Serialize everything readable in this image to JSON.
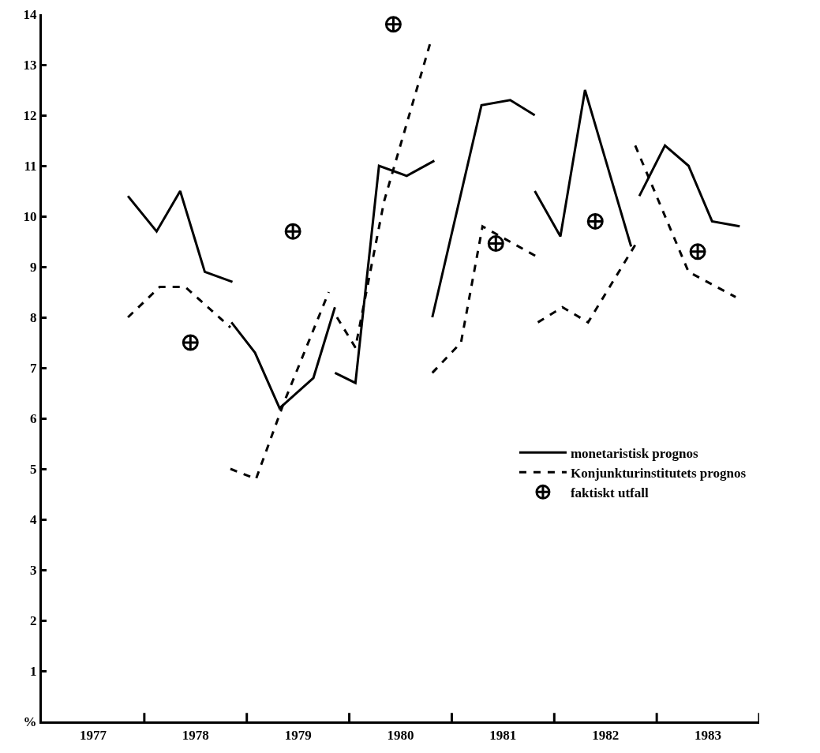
{
  "chart_data": {
    "type": "line",
    "xlim": [
      1977,
      1984
    ],
    "ylim": [
      0,
      14
    ],
    "xticks": [
      {
        "value": 1977.5,
        "label": "1977"
      },
      {
        "value": 1978.5,
        "label": "1978"
      },
      {
        "value": 1979.5,
        "label": "1979"
      },
      {
        "value": 1980.5,
        "label": "1980"
      },
      {
        "value": 1981.5,
        "label": "1981"
      },
      {
        "value": 1982.5,
        "label": "1982"
      },
      {
        "value": 1983.5,
        "label": "1983"
      },
      {
        "value": 1978,
        "label": null
      },
      {
        "value": 1979,
        "label": null
      },
      {
        "value": 1980,
        "label": null
      },
      {
        "value": 1981,
        "label": null
      },
      {
        "value": 1982,
        "label": null
      },
      {
        "value": 1983,
        "label": null
      },
      {
        "value": 1984,
        "label": null
      }
    ],
    "yticks": [
      {
        "value": 0,
        "label": "%"
      },
      1,
      2,
      3,
      4,
      5,
      6,
      7,
      8,
      9,
      10,
      11,
      12,
      13,
      14
    ],
    "grid": false,
    "legend": "right",
    "series": [
      {
        "name": "monetaristisk prognos",
        "color": "#000000",
        "line_style": "solid",
        "x": [
          1977.84,
          1978.12,
          1978.35,
          1978.59,
          1978.86,
          null,
          1978.85,
          1979.08,
          1979.32,
          1979.65,
          1979.86,
          null,
          1979.86,
          1980.06,
          1980.29,
          1980.56,
          1980.83,
          null,
          1980.81,
          1981.29,
          1981.57,
          1981.81,
          null,
          1981.81,
          1982.06,
          1982.3,
          1982.75,
          null,
          1982.83,
          1983.08,
          1983.31,
          1983.54,
          1983.81
        ],
        "values": [
          10.4,
          9.7,
          10.5,
          8.9,
          8.7,
          null,
          7.9,
          7.3,
          6.2,
          6.8,
          8.2,
          null,
          6.9,
          6.7,
          11.0,
          10.8,
          11.1,
          null,
          8.0,
          12.2,
          12.3,
          12.0,
          null,
          10.5,
          9.6,
          12.5,
          9.4,
          null,
          10.4,
          11.4,
          11.0,
          9.9,
          9.8
        ]
      },
      {
        "name": "Konjunkturinstitutets prognos",
        "color": "#000000",
        "line_style": "dashed",
        "x": [
          1977.84,
          1978.15,
          1978.4,
          1978.84,
          null,
          1978.84,
          1979.09,
          1979.36,
          1979.8,
          null,
          1979.88,
          1980.06,
          1980.34,
          1980.8,
          null,
          1980.81,
          1981.09,
          1981.3,
          1981.83,
          null,
          1981.84,
          1982.08,
          1982.33,
          1982.81,
          null,
          1982.79,
          1983.31,
          1983.77
        ],
        "values": [
          8.0,
          8.6,
          8.6,
          7.8,
          null,
          5.0,
          4.8,
          6.3,
          8.5,
          null,
          8.0,
          7.4,
          10.3,
          13.5,
          null,
          6.9,
          7.5,
          9.8,
          9.2,
          null,
          7.9,
          8.2,
          7.9,
          9.5,
          null,
          11.4,
          8.9,
          8.4
        ]
      },
      {
        "name": "faktiskt utfall",
        "type": "scatter",
        "color": "#000000",
        "marker": "cross",
        "x": [
          1978.45,
          1979.45,
          1980.43,
          1981.43,
          1982.4,
          1983.4
        ],
        "values": [
          7.5,
          9.7,
          13.8,
          9.46,
          9.9,
          9.3
        ]
      }
    ]
  }
}
